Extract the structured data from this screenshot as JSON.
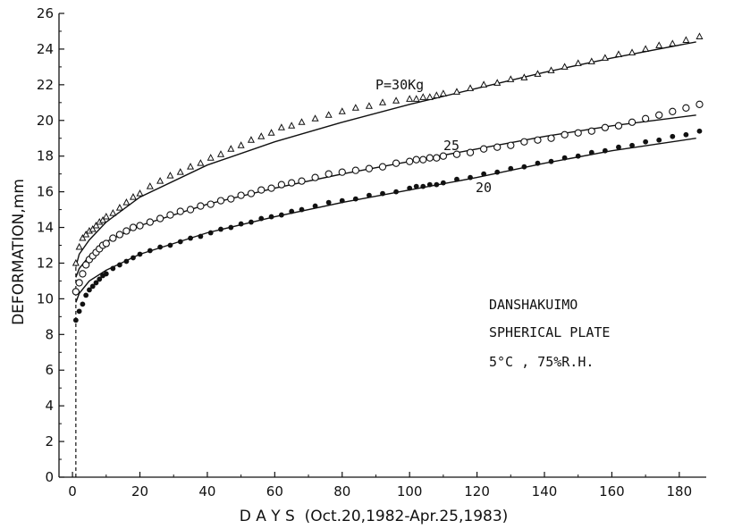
{
  "chart_data": {
    "type": "line",
    "title": "",
    "xlabel": "D A Y S  (Oct.20,1982-Apr.25,1983)",
    "ylabel": "DEFORMATION,mm",
    "xlim": [
      -4,
      188
    ],
    "ylim": [
      0,
      26
    ],
    "xticks": [
      0,
      20,
      40,
      60,
      80,
      100,
      120,
      140,
      160,
      180
    ],
    "yticks": [
      0,
      2,
      4,
      6,
      8,
      10,
      12,
      14,
      16,
      18,
      20,
      22,
      24,
      26
    ],
    "grid": false,
    "legend": "none",
    "annotations": [
      "DANSHAKUIMO",
      "SPHERICAL PLATE",
      "5°C , 75%R.H."
    ],
    "series": [
      {
        "name": "P=30Kg",
        "marker": "triangle",
        "fit_curve": {
          "x": [
            1,
            2,
            5,
            10,
            20,
            40,
            60,
            80,
            100,
            120,
            140,
            160,
            185
          ],
          "y": [
            11.8,
            12.5,
            13.3,
            14.3,
            15.7,
            17.5,
            18.8,
            19.9,
            20.9,
            21.8,
            22.7,
            23.5,
            24.4
          ]
        },
        "points": {
          "x": [
            1,
            2,
            3,
            4,
            5,
            6,
            7,
            8,
            9,
            10,
            12,
            14,
            16,
            18,
            20,
            23,
            26,
            29,
            32,
            35,
            38,
            41,
            44,
            47,
            50,
            53,
            56,
            59,
            62,
            65,
            68,
            72,
            76,
            80,
            84,
            88,
            92,
            96,
            100,
            102,
            104,
            106,
            108,
            110,
            114,
            118,
            122,
            126,
            130,
            134,
            138,
            142,
            146,
            150,
            154,
            158,
            162,
            166,
            170,
            174,
            178,
            182,
            186
          ],
          "y": [
            12.0,
            12.9,
            13.4,
            13.6,
            13.8,
            13.9,
            14.1,
            14.3,
            14.4,
            14.6,
            14.8,
            15.1,
            15.4,
            15.7,
            15.9,
            16.3,
            16.6,
            16.9,
            17.1,
            17.4,
            17.6,
            17.9,
            18.1,
            18.4,
            18.6,
            18.9,
            19.1,
            19.3,
            19.6,
            19.7,
            19.9,
            20.1,
            20.3,
            20.5,
            20.7,
            20.8,
            21.0,
            21.1,
            21.2,
            21.2,
            21.3,
            21.3,
            21.4,
            21.5,
            21.6,
            21.8,
            22.0,
            22.1,
            22.3,
            22.4,
            22.6,
            22.8,
            23.0,
            23.2,
            23.3,
            23.5,
            23.7,
            23.8,
            24.0,
            24.2,
            24.3,
            24.5,
            24.7
          ]
        }
      },
      {
        "name": "25",
        "marker": "circle-open",
        "fit_curve": {
          "x": [
            1,
            2,
            5,
            10,
            20,
            40,
            60,
            80,
            100,
            120,
            140,
            160,
            185
          ],
          "y": [
            11.2,
            11.7,
            12.4,
            13.2,
            14.1,
            15.3,
            16.2,
            17.0,
            17.7,
            18.4,
            19.1,
            19.7,
            20.3
          ]
        },
        "points": {
          "x": [
            1,
            2,
            3,
            4,
            5,
            6,
            7,
            8,
            9,
            10,
            12,
            14,
            16,
            18,
            20,
            23,
            26,
            29,
            32,
            35,
            38,
            41,
            44,
            47,
            50,
            53,
            56,
            59,
            62,
            65,
            68,
            72,
            76,
            80,
            84,
            88,
            92,
            96,
            100,
            102,
            104,
            106,
            108,
            110,
            114,
            118,
            122,
            126,
            130,
            134,
            138,
            142,
            146,
            150,
            154,
            158,
            162,
            166,
            170,
            174,
            178,
            182,
            186
          ],
          "y": [
            10.4,
            10.9,
            11.4,
            11.9,
            12.2,
            12.4,
            12.6,
            12.8,
            13.0,
            13.1,
            13.4,
            13.6,
            13.8,
            14.0,
            14.1,
            14.3,
            14.5,
            14.7,
            14.9,
            15.0,
            15.2,
            15.3,
            15.5,
            15.6,
            15.8,
            15.9,
            16.1,
            16.2,
            16.4,
            16.5,
            16.6,
            16.8,
            17.0,
            17.1,
            17.2,
            17.3,
            17.4,
            17.6,
            17.7,
            17.8,
            17.8,
            17.9,
            17.9,
            18.0,
            18.1,
            18.2,
            18.4,
            18.5,
            18.6,
            18.8,
            18.9,
            19.0,
            19.2,
            19.3,
            19.4,
            19.6,
            19.7,
            19.9,
            20.1,
            20.3,
            20.5,
            20.7,
            20.9
          ]
        }
      },
      {
        "name": "20",
        "marker": "circle-filled",
        "fit_curve": {
          "x": [
            1,
            2,
            5,
            10,
            20,
            40,
            60,
            80,
            100,
            120,
            140,
            160,
            185
          ],
          "y": [
            9.8,
            10.3,
            11.0,
            11.6,
            12.5,
            13.7,
            14.6,
            15.4,
            16.1,
            16.8,
            17.6,
            18.3,
            19.0
          ]
        },
        "points": {
          "x": [
            1,
            2,
            3,
            4,
            5,
            6,
            7,
            8,
            9,
            10,
            12,
            14,
            16,
            18,
            20,
            23,
            26,
            29,
            32,
            35,
            38,
            41,
            44,
            47,
            50,
            53,
            56,
            59,
            62,
            65,
            68,
            72,
            76,
            80,
            84,
            88,
            92,
            96,
            100,
            102,
            104,
            106,
            108,
            110,
            114,
            118,
            122,
            126,
            130,
            134,
            138,
            142,
            146,
            150,
            154,
            158,
            162,
            166,
            170,
            174,
            178,
            182,
            186
          ],
          "y": [
            8.8,
            9.3,
            9.7,
            10.2,
            10.5,
            10.7,
            10.9,
            11.1,
            11.3,
            11.4,
            11.7,
            11.9,
            12.1,
            12.3,
            12.5,
            12.7,
            12.9,
            13.0,
            13.2,
            13.4,
            13.5,
            13.7,
            13.9,
            14.0,
            14.2,
            14.3,
            14.5,
            14.6,
            14.7,
            14.9,
            15.0,
            15.2,
            15.4,
            15.5,
            15.6,
            15.8,
            15.9,
            16.0,
            16.2,
            16.3,
            16.3,
            16.4,
            16.4,
            16.5,
            16.7,
            16.8,
            17.0,
            17.1,
            17.3,
            17.4,
            17.6,
            17.7,
            17.9,
            18.0,
            18.2,
            18.3,
            18.5,
            18.6,
            18.8,
            18.9,
            19.1,
            19.2,
            19.4
          ]
        }
      }
    ]
  }
}
